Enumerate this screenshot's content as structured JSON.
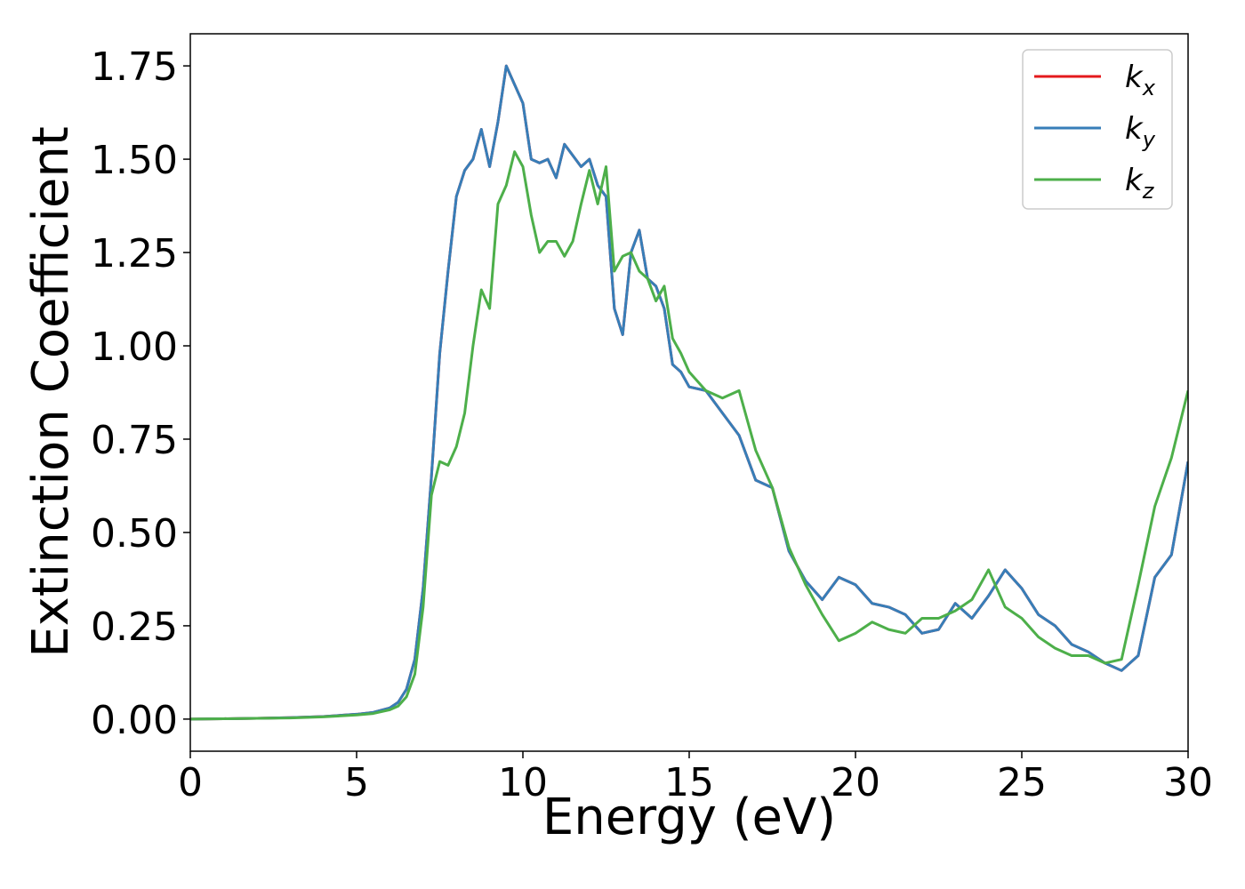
{
  "chart_data": {
    "type": "line",
    "xlabel": "Energy (eV)",
    "ylabel": "Extinction Coefficient",
    "x": [
      0,
      1,
      2,
      3,
      4,
      5,
      5.5,
      6,
      6.25,
      6.5,
      6.75,
      7,
      7.25,
      7.5,
      7.75,
      8,
      8.25,
      8.5,
      8.75,
      9,
      9.25,
      9.5,
      9.75,
      10,
      10.25,
      10.5,
      10.75,
      11,
      11.25,
      11.5,
      11.75,
      12,
      12.25,
      12.5,
      12.75,
      13,
      13.25,
      13.5,
      13.75,
      14,
      14.25,
      14.5,
      14.75,
      15,
      15.5,
      16,
      16.5,
      17,
      17.5,
      18,
      18.5,
      19,
      19.5,
      20,
      20.5,
      21,
      21.5,
      22,
      22.5,
      23,
      23.5,
      24,
      24.5,
      25,
      25.5,
      26,
      26.5,
      27,
      27.5,
      28,
      28.5,
      29,
      29.5,
      30
    ],
    "series": [
      {
        "name": "kx",
        "color": "#e41a1c",
        "values": [
          0,
          0.001,
          0.002,
          0.004,
          0.007,
          0.013,
          0.018,
          0.03,
          0.045,
          0.08,
          0.16,
          0.35,
          0.65,
          0.98,
          1.2,
          1.4,
          1.47,
          1.5,
          1.58,
          1.48,
          1.6,
          1.75,
          1.7,
          1.65,
          1.5,
          1.49,
          1.5,
          1.45,
          1.54,
          1.51,
          1.48,
          1.5,
          1.43,
          1.4,
          1.1,
          1.03,
          1.25,
          1.31,
          1.18,
          1.16,
          1.1,
          0.95,
          0.93,
          0.89,
          0.88,
          0.82,
          0.76,
          0.64,
          0.62,
          0.45,
          0.37,
          0.32,
          0.38,
          0.36,
          0.31,
          0.3,
          0.28,
          0.23,
          0.24,
          0.31,
          0.27,
          0.33,
          0.4,
          0.35,
          0.28,
          0.25,
          0.2,
          0.18,
          0.15,
          0.13,
          0.17,
          0.38,
          0.44,
          0.69
        ]
      },
      {
        "name": "ky",
        "color": "#377eb8",
        "values": [
          0,
          0.001,
          0.002,
          0.004,
          0.007,
          0.013,
          0.018,
          0.03,
          0.045,
          0.08,
          0.16,
          0.35,
          0.65,
          0.98,
          1.2,
          1.4,
          1.47,
          1.5,
          1.58,
          1.48,
          1.6,
          1.75,
          1.7,
          1.65,
          1.5,
          1.49,
          1.5,
          1.45,
          1.54,
          1.51,
          1.48,
          1.5,
          1.43,
          1.4,
          1.1,
          1.03,
          1.25,
          1.31,
          1.18,
          1.16,
          1.1,
          0.95,
          0.93,
          0.89,
          0.88,
          0.82,
          0.76,
          0.64,
          0.62,
          0.45,
          0.37,
          0.32,
          0.38,
          0.36,
          0.31,
          0.3,
          0.28,
          0.23,
          0.24,
          0.31,
          0.27,
          0.33,
          0.4,
          0.35,
          0.28,
          0.25,
          0.2,
          0.18,
          0.15,
          0.13,
          0.17,
          0.38,
          0.44,
          0.69
        ]
      },
      {
        "name": "kz",
        "color": "#4daf4a",
        "values": [
          0,
          0.001,
          0.002,
          0.003,
          0.006,
          0.011,
          0.015,
          0.025,
          0.035,
          0.06,
          0.12,
          0.3,
          0.6,
          0.69,
          0.68,
          0.73,
          0.82,
          1.0,
          1.15,
          1.1,
          1.38,
          1.43,
          1.52,
          1.48,
          1.35,
          1.25,
          1.28,
          1.28,
          1.24,
          1.28,
          1.38,
          1.47,
          1.38,
          1.48,
          1.2,
          1.24,
          1.25,
          1.2,
          1.18,
          1.12,
          1.16,
          1.02,
          0.98,
          0.93,
          0.88,
          0.86,
          0.88,
          0.72,
          0.62,
          0.46,
          0.36,
          0.28,
          0.21,
          0.23,
          0.26,
          0.24,
          0.23,
          0.27,
          0.27,
          0.29,
          0.32,
          0.4,
          0.3,
          0.27,
          0.22,
          0.19,
          0.17,
          0.17,
          0.15,
          0.16,
          0.36,
          0.57,
          0.7,
          0.88
        ]
      }
    ],
    "xlim": [
      0,
      30
    ],
    "ylim": [
      -0.086,
      1.836
    ],
    "xticks": [
      0,
      5,
      10,
      15,
      20,
      25,
      30
    ],
    "yticks": [
      {
        "value": 0,
        "label": "0.00"
      },
      {
        "value": 0.25,
        "label": "0.25"
      },
      {
        "value": 0.5,
        "label": "0.50"
      },
      {
        "value": 0.75,
        "label": "0.75"
      },
      {
        "value": 1,
        "label": "1.00"
      },
      {
        "value": 1.25,
        "label": "1.25"
      },
      {
        "value": 1.5,
        "label": "1.50"
      },
      {
        "value": 1.75,
        "label": "1.75"
      }
    ],
    "legend": "upper right",
    "grid": false
  }
}
